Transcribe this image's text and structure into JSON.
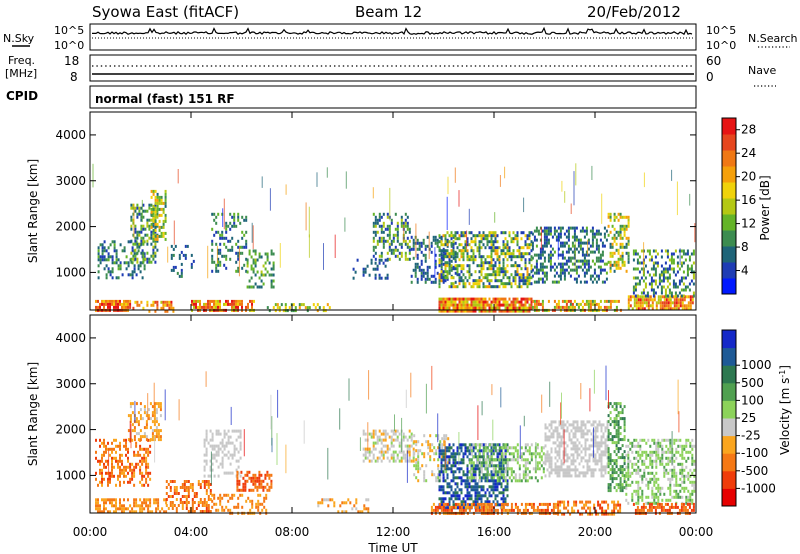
{
  "header": {
    "station": "Syowa East (fitACF)",
    "beam": "Beam 12",
    "date": "20/Feb/2012"
  },
  "noise_panel": {
    "left_label": "N.Sky",
    "right_label": "N.Search",
    "left_ticks": [
      "10^5",
      "10^0"
    ],
    "right_ticks": [
      "10^5",
      "10^0"
    ]
  },
  "freq_panel": {
    "left_label_1": "Freq.",
    "left_label_2": "[MHz]",
    "right_label": "Nave",
    "left_ticks": [
      "18",
      "8"
    ],
    "right_ticks": [
      "60",
      "0"
    ]
  },
  "cpid_panel": {
    "label": "CPID",
    "text": "normal (fast) 151 RF"
  },
  "x_axis": {
    "label": "Time UT",
    "ticks": [
      "00:00",
      "04:00",
      "08:00",
      "12:00",
      "16:00",
      "20:00",
      "00:00"
    ]
  },
  "colors": {
    "power": [
      "#0019ff",
      "#1e3cb4",
      "#1e6478",
      "#3c8c50",
      "#64b428",
      "#b4c814",
      "#f0d20a",
      "#f5a00a",
      "#f07814",
      "#e6461e",
      "#e61414"
    ],
    "velocity": [
      "#e60000",
      "#f03c0a",
      "#f57814",
      "#faa51e",
      "#c8c8c8",
      "#8cd25a",
      "#50a050",
      "#2d7850",
      "#1e5a96",
      "#1428c8"
    ]
  },
  "chart_data": [
    {
      "type": "heatmap",
      "title": "",
      "xlabel": "Time UT",
      "ylabel": "Slant Range [km]",
      "xlim": [
        0,
        24
      ],
      "ylim": [
        180,
        4500
      ],
      "yticks": [
        1000,
        2000,
        3000,
        4000
      ],
      "colorbar": {
        "label": "Power [dB]",
        "range": [
          0,
          30
        ],
        "ticks": [
          4,
          8,
          12,
          16,
          20,
          24,
          28
        ]
      },
      "regions": [
        {
          "t0": 0.2,
          "t1": 1.6,
          "r0": 180,
          "r1": 400,
          "v0": 18,
          "v1": 30,
          "density": 0.85
        },
        {
          "t0": 0.3,
          "t1": 2.2,
          "r0": 900,
          "r1": 1700,
          "v0": 3,
          "v1": 12,
          "density": 0.35
        },
        {
          "t0": 1.6,
          "t1": 2.7,
          "r0": 1200,
          "r1": 2500,
          "v0": 4,
          "v1": 16,
          "density": 0.45
        },
        {
          "t0": 2.4,
          "t1": 3.0,
          "r0": 1700,
          "r1": 2800,
          "v0": 8,
          "v1": 22,
          "density": 0.55
        },
        {
          "t0": 1.6,
          "t1": 3.3,
          "r0": 180,
          "r1": 380,
          "v0": 16,
          "v1": 28,
          "density": 0.5
        },
        {
          "t0": 4.0,
          "t1": 6.5,
          "r0": 180,
          "r1": 400,
          "v0": 14,
          "v1": 30,
          "density": 0.7
        },
        {
          "t0": 4.8,
          "t1": 6.2,
          "r0": 1000,
          "r1": 2300,
          "v0": 3,
          "v1": 12,
          "density": 0.3
        },
        {
          "t0": 6.2,
          "t1": 7.3,
          "r0": 700,
          "r1": 1500,
          "v0": 6,
          "v1": 14,
          "density": 0.4
        },
        {
          "t0": 3.2,
          "t1": 4.1,
          "r0": 900,
          "r1": 1600,
          "v0": 3,
          "v1": 9,
          "density": 0.25
        },
        {
          "t0": 7.0,
          "t1": 9.5,
          "r0": 180,
          "r1": 330,
          "v0": 8,
          "v1": 20,
          "density": 0.3
        },
        {
          "t0": 11.2,
          "t1": 12.7,
          "r0": 1300,
          "r1": 2300,
          "v0": 3,
          "v1": 16,
          "density": 0.45
        },
        {
          "t0": 10.4,
          "t1": 11.8,
          "r0": 900,
          "r1": 1300,
          "v0": 3,
          "v1": 8,
          "density": 0.25
        },
        {
          "t0": 12.7,
          "t1": 14.5,
          "r0": 800,
          "r1": 1800,
          "v0": 3,
          "v1": 10,
          "density": 0.35
        },
        {
          "t0": 13.8,
          "t1": 17.5,
          "r0": 180,
          "r1": 450,
          "v0": 14,
          "v1": 30,
          "density": 0.9
        },
        {
          "t0": 13.8,
          "t1": 17.5,
          "r0": 700,
          "r1": 1900,
          "v0": 3,
          "v1": 20,
          "density": 0.55
        },
        {
          "t0": 17.5,
          "t1": 21.0,
          "r0": 180,
          "r1": 400,
          "v0": 10,
          "v1": 26,
          "density": 0.6
        },
        {
          "t0": 17.5,
          "t1": 20.5,
          "r0": 800,
          "r1": 2000,
          "v0": 3,
          "v1": 12,
          "density": 0.45
        },
        {
          "t0": 20.5,
          "t1": 21.3,
          "r0": 1000,
          "r1": 2300,
          "v0": 6,
          "v1": 22,
          "density": 0.5
        },
        {
          "t0": 21.3,
          "t1": 23.9,
          "r0": 180,
          "r1": 500,
          "v0": 14,
          "v1": 28,
          "density": 0.8
        },
        {
          "t0": 21.5,
          "t1": 23.9,
          "r0": 500,
          "r1": 1500,
          "v0": 3,
          "v1": 16,
          "density": 0.4
        }
      ]
    },
    {
      "type": "heatmap",
      "title": "",
      "xlabel": "Time UT",
      "ylabel": "Slant Range [km]",
      "xlim": [
        0,
        24
      ],
      "ylim": [
        180,
        4500
      ],
      "yticks": [
        1000,
        2000,
        3000,
        4000
      ],
      "colorbar": {
        "label": "Velocity [m s^-1]",
        "ticks": [
          -1000,
          -500,
          -100,
          -25,
          25,
          100,
          500,
          1000
        ]
      },
      "regions": [
        {
          "t0": 0.2,
          "t1": 2.4,
          "r0": 800,
          "r1": 1800,
          "v0": 1,
          "v1": 3,
          "density": 0.45
        },
        {
          "t0": 1.5,
          "t1": 2.8,
          "r0": 1800,
          "r1": 2600,
          "v0": 2,
          "v1": 4,
          "density": 0.45
        },
        {
          "t0": 0.2,
          "t1": 3.0,
          "r0": 180,
          "r1": 500,
          "v0": 2,
          "v1": 3,
          "density": 0.55
        },
        {
          "t0": 3.0,
          "t1": 4.8,
          "r0": 180,
          "r1": 900,
          "v0": 1,
          "v1": 3,
          "density": 0.5
        },
        {
          "t0": 4.5,
          "t1": 6.0,
          "r0": 1000,
          "r1": 2000,
          "v0": 4,
          "v1": 4,
          "density": 0.35
        },
        {
          "t0": 5.8,
          "t1": 7.2,
          "r0": 650,
          "r1": 1100,
          "v0": 1,
          "v1": 2,
          "density": 0.6
        },
        {
          "t0": 4.8,
          "t1": 7.0,
          "r0": 180,
          "r1": 600,
          "v0": 2,
          "v1": 3,
          "density": 0.35
        },
        {
          "t0": 9.0,
          "t1": 11.0,
          "r0": 180,
          "r1": 500,
          "v0": 2,
          "v1": 4,
          "density": 0.3
        },
        {
          "t0": 10.8,
          "t1": 12.8,
          "r0": 1300,
          "r1": 2000,
          "v0": 3,
          "v1": 5,
          "density": 0.5
        },
        {
          "t0": 12.8,
          "t1": 14.2,
          "r0": 900,
          "r1": 1900,
          "v0": 3,
          "v1": 5,
          "density": 0.35
        },
        {
          "t0": 13.8,
          "t1": 16.5,
          "r0": 300,
          "r1": 1700,
          "v0": 7,
          "v1": 9,
          "density": 0.6
        },
        {
          "t0": 15.0,
          "t1": 18.0,
          "r0": 900,
          "r1": 1700,
          "v0": 4,
          "v1": 6,
          "density": 0.45
        },
        {
          "t0": 13.5,
          "t1": 18.5,
          "r0": 180,
          "r1": 400,
          "v0": 1,
          "v1": 3,
          "density": 0.65
        },
        {
          "t0": 18.0,
          "t1": 20.5,
          "r0": 1000,
          "r1": 2200,
          "v0": 4,
          "v1": 4,
          "density": 0.55
        },
        {
          "t0": 20.5,
          "t1": 21.2,
          "r0": 700,
          "r1": 2600,
          "v0": 5,
          "v1": 7,
          "density": 0.5
        },
        {
          "t0": 18.5,
          "t1": 21.0,
          "r0": 180,
          "r1": 450,
          "v0": 1,
          "v1": 3,
          "density": 0.5
        },
        {
          "t0": 21.2,
          "t1": 23.9,
          "r0": 400,
          "r1": 1800,
          "v0": 4,
          "v1": 6,
          "density": 0.45
        },
        {
          "t0": 21.5,
          "t1": 23.9,
          "r0": 180,
          "r1": 400,
          "v0": 1,
          "v1": 2,
          "density": 0.6
        }
      ]
    }
  ]
}
